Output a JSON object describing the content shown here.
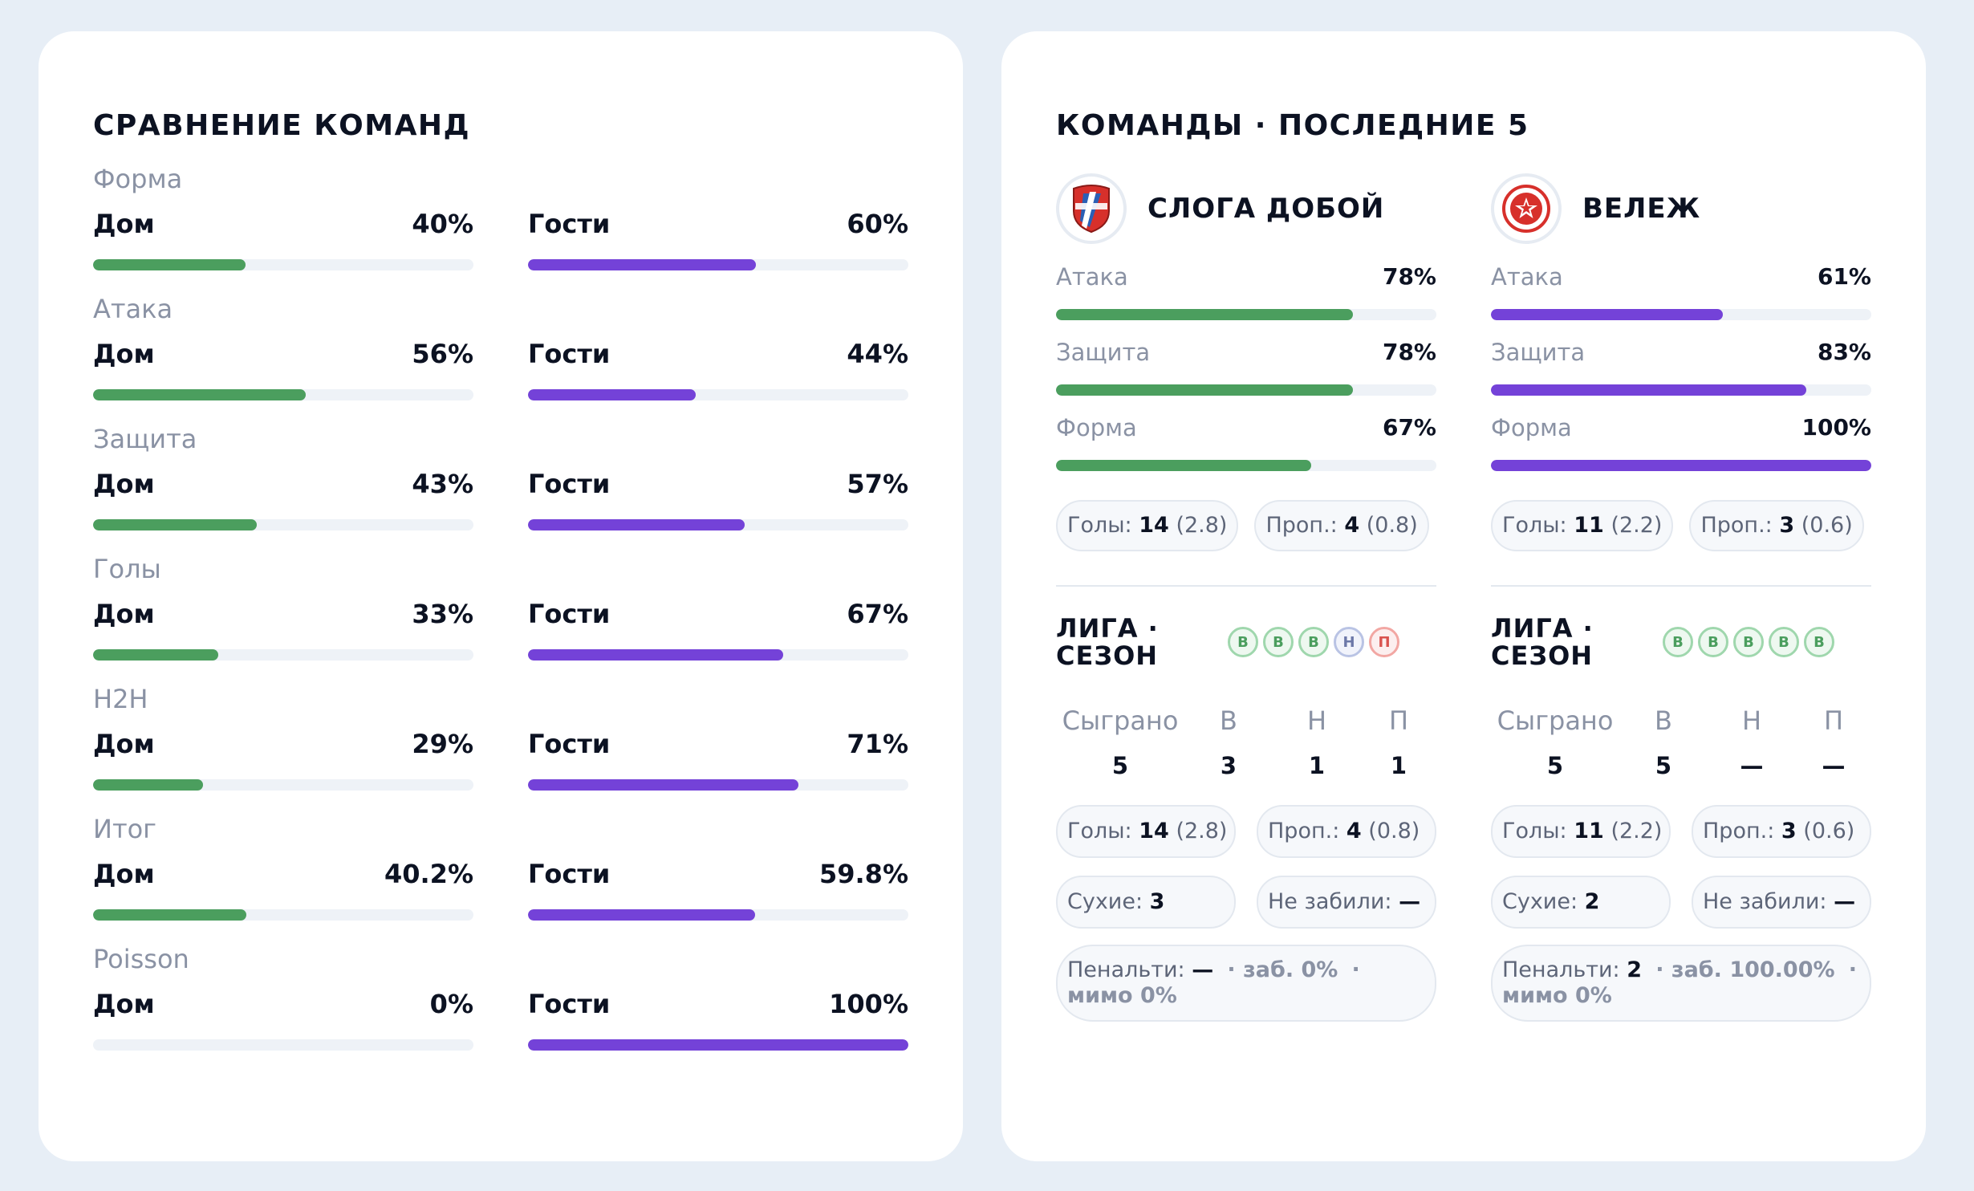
{
  "comparison": {
    "title": "СРАВНЕНИЕ КОМАНД",
    "home_label": "Дом",
    "away_label": "Гости",
    "sections": [
      {
        "label": "Форма",
        "home": "40%",
        "away": "60%",
        "home_frac": 0.4,
        "away_frac": 0.6
      },
      {
        "label": "Атака",
        "home": "56%",
        "away": "44%",
        "home_frac": 0.56,
        "away_frac": 0.44
      },
      {
        "label": "Защита",
        "home": "43%",
        "away": "57%",
        "home_frac": 0.43,
        "away_frac": 0.57
      },
      {
        "label": "Голы",
        "home": "33%",
        "away": "67%",
        "home_frac": 0.33,
        "away_frac": 0.67
      },
      {
        "label": "H2H",
        "home": "29%",
        "away": "71%",
        "home_frac": 0.29,
        "away_frac": 0.71
      },
      {
        "label": "Итог",
        "home": "40.2%",
        "away": "59.8%",
        "home_frac": 0.402,
        "away_frac": 0.598
      },
      {
        "label": "Poisson",
        "home": "0%",
        "away": "100%",
        "home_frac": 0.0,
        "away_frac": 1.0
      }
    ]
  },
  "teams_panel": {
    "title": "КОМАНДЫ · ПОСЛЕДНИЕ 5",
    "labels": {
      "attack": "Атака",
      "defense": "Защита",
      "form": "Форма",
      "goals": "Голы:",
      "conceded": "Проп.:",
      "league_season": "ЛИГА · СЕЗОН",
      "played": "Сыграно",
      "w": "В",
      "d": "Н",
      "l": "П",
      "clean": "Сухие:",
      "failed": "Не забили:",
      "penalties": "Пенальти:",
      "scored": "· заб.",
      "missed": "· мимо"
    },
    "teams": [
      {
        "name": "СЛОГА ДОБОЙ",
        "color": "#4b9e5e",
        "attack": "78%",
        "attack_frac": 0.78,
        "defense": "78%",
        "defense_frac": 0.78,
        "form": "67%",
        "form_frac": 0.67,
        "goals": "14",
        "goals_avg": "(2.8)",
        "conceded": "4",
        "conceded_avg": "(0.8)",
        "results": [
          "В",
          "В",
          "В",
          "Н",
          "П"
        ],
        "played": "5",
        "w": "3",
        "d": "1",
        "l": "1",
        "season_goals": "14",
        "season_goals_avg": "(2.8)",
        "season_conceded": "4",
        "season_conceded_avg": "(0.8)",
        "clean": "3",
        "failed": "—",
        "penalties": "—",
        "pen_scored": "0%",
        "pen_missed": "0%"
      },
      {
        "name": "ВЕЛЕЖ",
        "color": "#7442d8",
        "attack": "61%",
        "attack_frac": 0.61,
        "defense": "83%",
        "defense_frac": 0.83,
        "form": "100%",
        "form_frac": 1.0,
        "goals": "11",
        "goals_avg": "(2.2)",
        "conceded": "3",
        "conceded_avg": "(0.6)",
        "results": [
          "В",
          "В",
          "В",
          "В",
          "В"
        ],
        "played": "5",
        "w": "5",
        "d": "—",
        "l": "—",
        "season_goals": "11",
        "season_goals_avg": "(2.2)",
        "season_conceded": "3",
        "season_conceded_avg": "(0.6)",
        "clean": "2",
        "failed": "—",
        "penalties": "2",
        "pen_scored": "100.00%",
        "pen_missed": "0%"
      }
    ]
  }
}
